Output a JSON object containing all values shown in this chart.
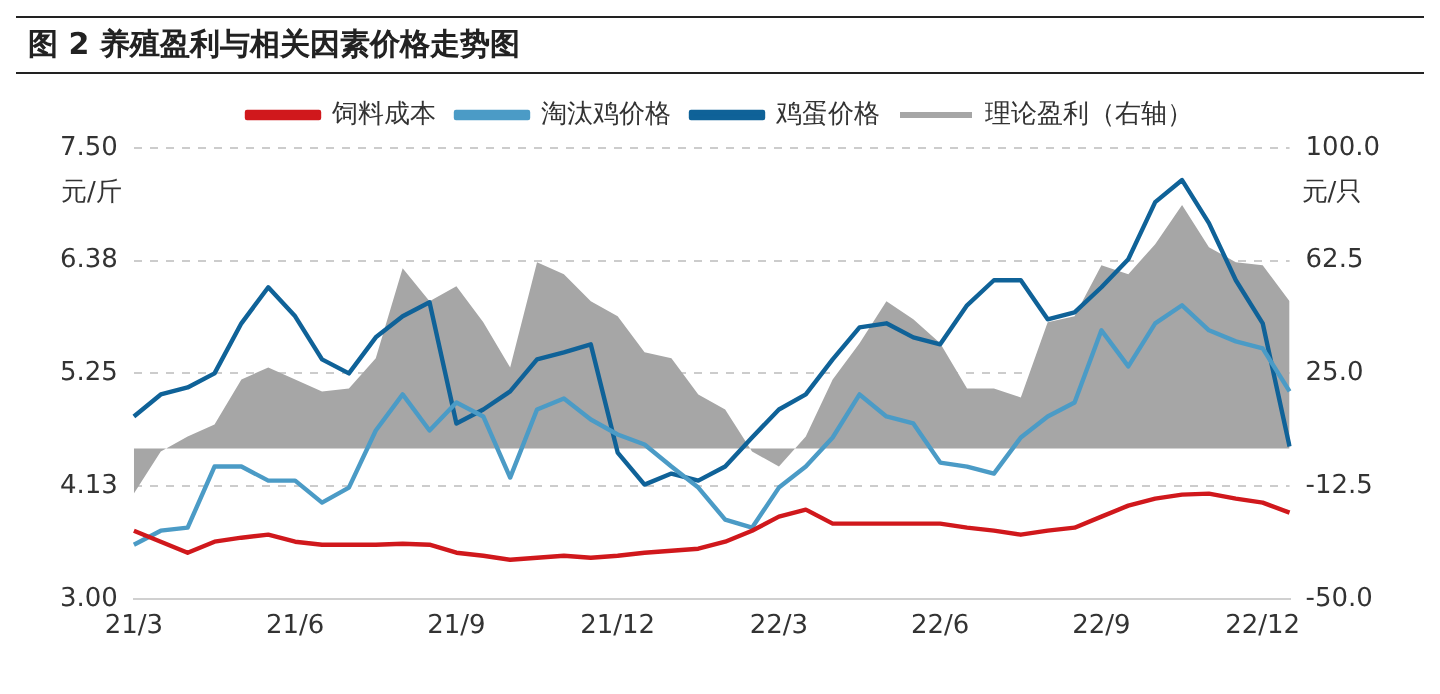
{
  "chart_data": {
    "type": "line",
    "title": "图 2 养殖盈利与相关因素价格走势图",
    "categories": [
      "21/3",
      null,
      null,
      null,
      null,
      null,
      "21/6",
      null,
      null,
      null,
      null,
      null,
      "21/9",
      null,
      null,
      null,
      null,
      null,
      "21/12",
      null,
      null,
      null,
      null,
      null,
      "22/3",
      null,
      null,
      null,
      null,
      null,
      "22/6",
      null,
      null,
      null,
      null,
      null,
      "22/9",
      null,
      null,
      null,
      null,
      null,
      "22/12",
      null
    ],
    "ylabel": "元/斤",
    "y2label": "元/只",
    "ylim": [
      3.0,
      7.5
    ],
    "yticks": [
      {
        "value": 3.0,
        "label": "3.00"
      },
      {
        "value": 4.125,
        "label": "4.13"
      },
      {
        "value": 5.25,
        "label": "5.25"
      },
      {
        "value": 6.375,
        "label": "6.38"
      },
      {
        "value": 7.5,
        "label": "7.50"
      }
    ],
    "y2lim": [
      -50,
      100
    ],
    "y2ticks": [
      {
        "value": -50,
        "label": "-50.0"
      },
      {
        "value": -12.5,
        "label": "-12.5"
      },
      {
        "value": 25,
        "label": "25.0"
      },
      {
        "value": 62.5,
        "label": "62.5"
      },
      {
        "value": 100,
        "label": "100.0"
      }
    ],
    "grid": "y",
    "legend": "top",
    "marker": "none",
    "series": [
      {
        "name": "理论盈利（右轴）",
        "type": "area",
        "axis": "y2",
        "color": "#a6a6a6",
        "values": [
          -15,
          -1,
          4,
          8,
          23,
          27,
          23,
          19,
          20,
          30,
          60,
          49,
          54,
          42,
          27,
          62,
          58,
          49,
          44,
          32,
          30,
          18,
          13,
          -1,
          -6,
          4,
          23,
          35,
          49,
          43,
          35,
          20,
          20,
          17,
          42,
          44,
          61,
          58,
          68,
          81,
          67,
          62,
          61,
          49
        ]
      },
      {
        "name": "鸡蛋价格",
        "color": "#0f6298",
        "values": [
          4.82,
          5.04,
          5.11,
          5.25,
          5.75,
          6.11,
          5.82,
          5.39,
          5.25,
          5.61,
          5.82,
          5.96,
          4.75,
          4.89,
          5.07,
          5.39,
          5.46,
          5.54,
          4.46,
          4.14,
          4.25,
          4.18,
          4.32,
          4.61,
          4.89,
          5.04,
          5.39,
          5.71,
          5.75,
          5.61,
          5.54,
          5.93,
          6.18,
          6.18,
          5.79,
          5.86,
          6.11,
          6.39,
          6.96,
          7.18,
          6.75,
          6.18,
          5.75,
          4.52
        ]
      },
      {
        "name": "淘汰鸡价格",
        "color": "#4b9bc6",
        "values": [
          3.54,
          3.68,
          3.71,
          4.32,
          4.32,
          4.18,
          4.18,
          3.96,
          4.11,
          4.68,
          5.04,
          4.68,
          4.96,
          4.82,
          4.21,
          4.89,
          5.0,
          4.79,
          4.64,
          4.54,
          4.32,
          4.11,
          3.79,
          3.71,
          4.11,
          4.32,
          4.61,
          5.04,
          4.82,
          4.75,
          4.36,
          4.32,
          4.25,
          4.61,
          4.82,
          4.96,
          5.68,
          5.32,
          5.75,
          5.93,
          5.68,
          5.57,
          5.5,
          5.07
        ]
      },
      {
        "name": "饲料成本",
        "color": "#d0181c",
        "values": [
          3.68,
          3.57,
          3.46,
          3.57,
          3.61,
          3.64,
          3.57,
          3.54,
          3.54,
          3.54,
          3.55,
          3.54,
          3.46,
          3.43,
          3.39,
          3.41,
          3.43,
          3.41,
          3.43,
          3.46,
          3.48,
          3.5,
          3.57,
          3.68,
          3.82,
          3.89,
          3.75,
          3.75,
          3.75,
          3.75,
          3.75,
          3.71,
          3.68,
          3.64,
          3.68,
          3.71,
          3.82,
          3.93,
          4.0,
          4.04,
          4.05,
          4.0,
          3.96,
          3.86
        ]
      }
    ]
  }
}
